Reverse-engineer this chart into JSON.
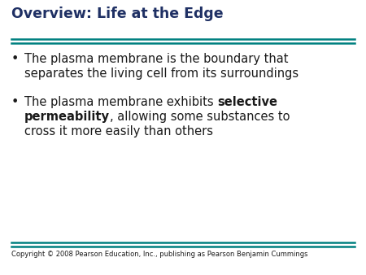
{
  "title": "Overview: Life at the Edge",
  "title_color": "#1f3064",
  "title_fontsize": 12.5,
  "background_color": "#ffffff",
  "line_color": "#008080",
  "bullet1_line1": "The plasma membrane is the boundary that",
  "bullet1_line2": "separates the living cell from its surroundings",
  "bullet2_line1_normal": "The plasma membrane exhibits ",
  "bullet2_line1_bold": "selective",
  "bullet2_line2_bold": "permeability",
  "bullet2_line2_normal": ", allowing some substances to",
  "bullet2_line3": "cross it more easily than others",
  "bullet_fontsize": 10.5,
  "copyright": "Copyright © 2008 Pearson Education, Inc., publishing as Pearson Benjamin Cummings",
  "copyright_fontsize": 6.0,
  "text_color": "#1a1a1a"
}
